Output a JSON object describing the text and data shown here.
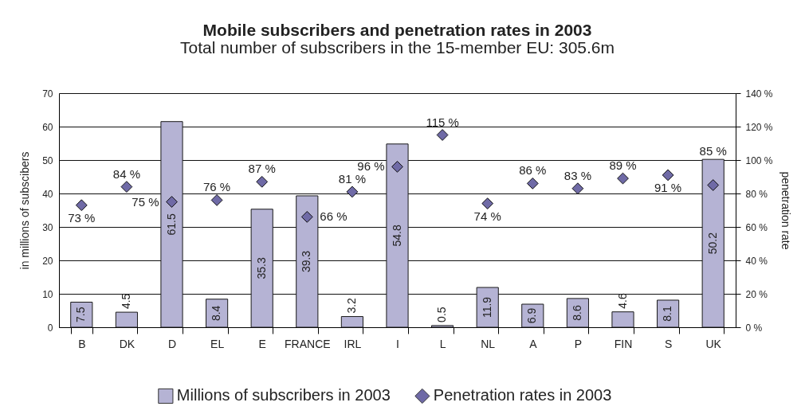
{
  "chart_data": {
    "type": "bar",
    "title": "Mobile subscribers and penetration rates in 2003",
    "subtitle": "Total number of subscribers in the 15-member EU: 305.6m",
    "ylabel": "in millions of subscibers",
    "y2label": "penetration rate",
    "categories": [
      "B",
      "DK",
      "D",
      "EL",
      "E",
      "FRANCE",
      "IRL",
      "I",
      "L",
      "NL",
      "A",
      "P",
      "FIN",
      "S",
      "UK"
    ],
    "series": [
      {
        "name": "Millions of subscribers in 2003",
        "color": "#b5b3d4",
        "values": [
          7.5,
          4.5,
          61.5,
          8.4,
          35.3,
          39.3,
          3.2,
          54.8,
          0.5,
          11.9,
          6.9,
          8.6,
          4.6,
          8.1,
          50.2
        ],
        "value_labels": [
          "7.5",
          "4.5",
          "61.5",
          "8.4",
          "35.3",
          "39.3",
          "3.2",
          "54.8",
          "0.5",
          "11.9",
          "6.9",
          "8.6",
          "4.6",
          "8.1",
          "50.2"
        ]
      },
      {
        "name": "Penetration rates in 2003",
        "type": "scatter",
        "axis": "y2",
        "marker": "diamond",
        "color": "#6f6aa6",
        "values": [
          73,
          84,
          75,
          76,
          87,
          66,
          81,
          96,
          115,
          74,
          86,
          83,
          89,
          91,
          85
        ],
        "value_labels": [
          "73 %",
          "84 %",
          "75 %",
          "76 %",
          "87 %",
          "66 %",
          "81 %",
          "96 %",
          "115 %",
          "74 %",
          "86 %",
          "83 %",
          "89 %",
          "91 %",
          "85 %"
        ]
      }
    ],
    "ylim": [
      0,
      70
    ],
    "yticks": [
      0,
      10,
      20,
      30,
      40,
      50,
      60,
      70
    ],
    "y2lim": [
      0,
      140
    ],
    "y2ticks": [
      {
        "value": 0,
        "label": "0 %"
      },
      {
        "value": 20,
        "label": "20 %"
      },
      {
        "value": 40,
        "label": "40 %"
      },
      {
        "value": 60,
        "label": "60 %"
      },
      {
        "value": 80,
        "label": "80 %"
      },
      {
        "value": 100,
        "label": "100 %"
      },
      {
        "value": 120,
        "label": "120 %"
      },
      {
        "value": 140,
        "label": "140 %"
      }
    ],
    "grid": "y",
    "legend": "bottom"
  }
}
